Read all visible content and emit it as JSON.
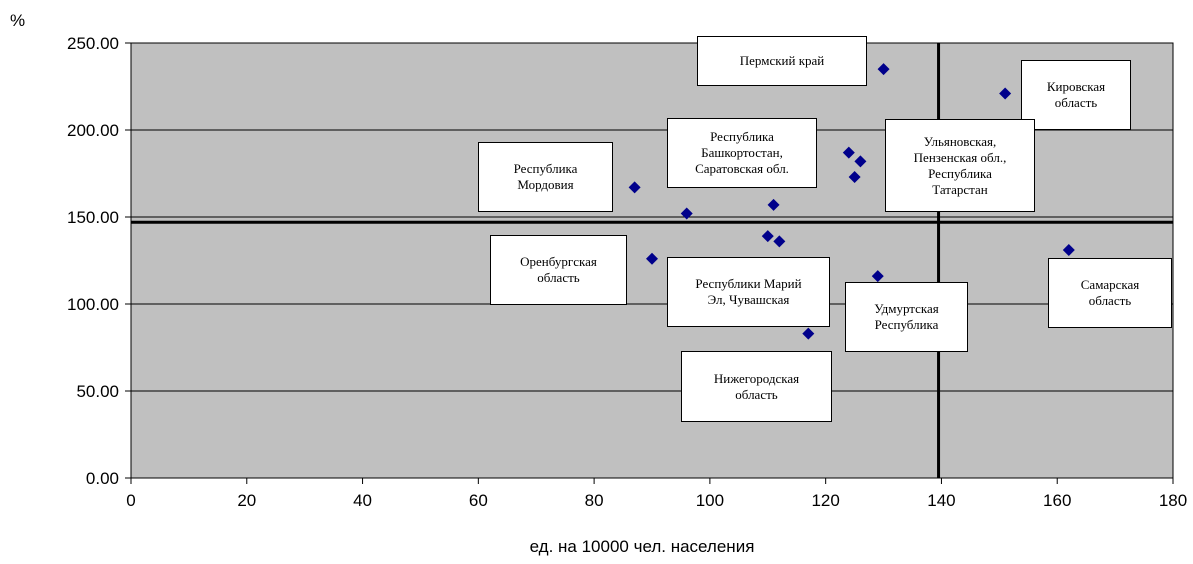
{
  "chart_data": {
    "type": "scatter",
    "title": "",
    "xlabel": "ед. на 10000 чел. населения",
    "ylabel": "%",
    "xlim": [
      0,
      180
    ],
    "ylim": [
      0,
      250
    ],
    "x_ticks": [
      0,
      20,
      40,
      60,
      80,
      100,
      120,
      140,
      160,
      180
    ],
    "y_ticks": [
      "0.00",
      "50.00",
      "100.00",
      "150.00",
      "200.00",
      "250.00"
    ],
    "grid": "horizontal",
    "plot_background": "#c0c0c0",
    "marker_color": "#00008b",
    "reference_lines": {
      "x": 139.5,
      "y": 147
    },
    "points": [
      {
        "x": 130,
        "y": 235
      },
      {
        "x": 151,
        "y": 221
      },
      {
        "x": 124,
        "y": 187
      },
      {
        "x": 126,
        "y": 182
      },
      {
        "x": 125,
        "y": 173
      },
      {
        "x": 87,
        "y": 167
      },
      {
        "x": 111,
        "y": 157
      },
      {
        "x": 96,
        "y": 152
      },
      {
        "x": 110,
        "y": 139
      },
      {
        "x": 112,
        "y": 136
      },
      {
        "x": 162,
        "y": 131
      },
      {
        "x": 90,
        "y": 126
      },
      {
        "x": 129,
        "y": 116
      },
      {
        "x": 117,
        "y": 83
      }
    ],
    "annotations": [
      "Пермский край",
      "Кировская\nобласть",
      "Республика\nБашкортостан,\nСаратовская обл.",
      "Ульяновская,\nПензенская обл.,\nРеспублика\nТатарстан",
      "Республика\nМордовия",
      "Оренбургская\nобласть",
      "Республики Марий\nЭл, Чувашская",
      "Удмуртская\nРеспублика",
      "Самарская\nобласть",
      "Нижегородская\nобласть"
    ]
  }
}
